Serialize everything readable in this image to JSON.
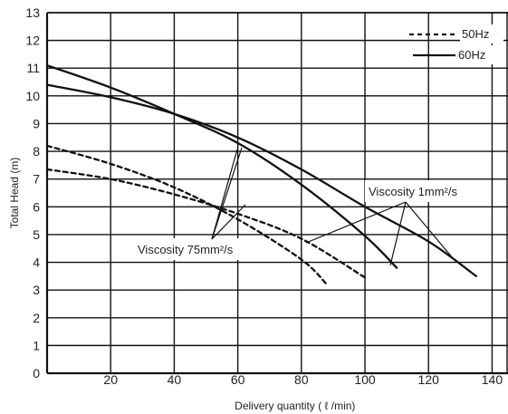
{
  "chart_data": {
    "type": "line",
    "xlabel": "Delivery quantity ( ℓ /min)",
    "ylabel": "Total Head (m)",
    "xlim": [
      0,
      145
    ],
    "ylim": [
      0,
      13
    ],
    "xticks": [
      20,
      40,
      60,
      80,
      100,
      120,
      140
    ],
    "yticks": [
      0,
      1,
      2,
      3,
      4,
      5,
      6,
      7,
      8,
      9,
      10,
      11,
      12,
      13
    ],
    "grid": true,
    "legend": {
      "placement": "top-right",
      "entries": [
        {
          "label": "50Hz",
          "style": "dashed"
        },
        {
          "label": "60Hz",
          "style": "solid"
        }
      ]
    },
    "annotations": [
      {
        "text": "Viscosity 1mm²/s",
        "target_series": [
          1,
          3
        ]
      },
      {
        "text": "Viscosity 75mm²/s",
        "target_series": [
          0,
          2
        ]
      }
    ],
    "series": [
      {
        "style": "solid",
        "color": "#111111",
        "points": [
          [
            0,
            10.4
          ],
          [
            20,
            9.95
          ],
          [
            40,
            9.35
          ],
          [
            60,
            8.5
          ],
          [
            80,
            7.35
          ],
          [
            100,
            6.0
          ],
          [
            120,
            4.75
          ],
          [
            135,
            3.5
          ]
        ]
      },
      {
        "style": "solid",
        "color": "#111111",
        "points": [
          [
            0,
            11.1
          ],
          [
            20,
            10.3
          ],
          [
            40,
            9.35
          ],
          [
            60,
            8.3
          ],
          [
            80,
            6.8
          ],
          [
            100,
            4.95
          ],
          [
            110,
            3.8
          ]
        ]
      },
      {
        "style": "dashed",
        "color": "#111111",
        "points": [
          [
            0,
            7.35
          ],
          [
            20,
            7.0
          ],
          [
            40,
            6.45
          ],
          [
            60,
            5.75
          ],
          [
            80,
            4.85
          ],
          [
            100,
            3.45
          ]
        ]
      },
      {
        "style": "dashed",
        "color": "#111111",
        "points": [
          [
            0,
            8.2
          ],
          [
            20,
            7.55
          ],
          [
            40,
            6.7
          ],
          [
            60,
            5.55
          ],
          [
            80,
            4.1
          ],
          [
            88,
            3.2
          ]
        ]
      }
    ]
  }
}
